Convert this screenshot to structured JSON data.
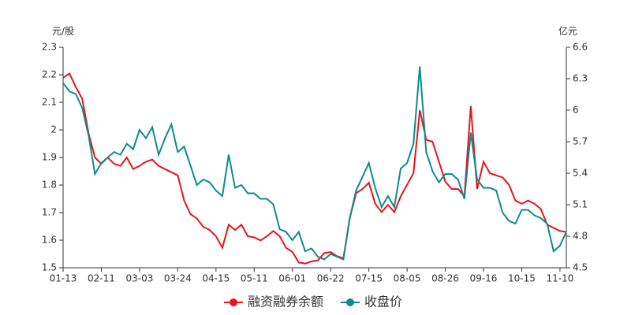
{
  "chart_data": {
    "type": "line",
    "y_label": "元/股",
    "y2_label": "亿元",
    "categories": [
      "01-13",
      null,
      null,
      null,
      null,
      null,
      "02-11",
      null,
      null,
      null,
      null,
      null,
      "03-03",
      null,
      null,
      null,
      null,
      null,
      "03-24",
      null,
      null,
      null,
      null,
      null,
      "04-15",
      null,
      null,
      null,
      null,
      null,
      "05-11",
      null,
      null,
      null,
      null,
      null,
      "06-01",
      null,
      null,
      null,
      null,
      null,
      "06-22",
      null,
      null,
      null,
      null,
      null,
      "07-15",
      null,
      null,
      null,
      null,
      null,
      "08-05",
      null,
      null,
      null,
      null,
      null,
      "08-26",
      null,
      null,
      null,
      null,
      null,
      "09-16",
      null,
      null,
      null,
      null,
      null,
      "10-15",
      null,
      null,
      null,
      null,
      null,
      "11-10",
      null
    ],
    "ylim": [
      1.5,
      2.3
    ],
    "yticks": [
      1.5,
      1.6,
      1.7,
      1.8,
      1.9,
      2,
      2.1,
      2.2,
      2.3
    ],
    "y2lim": [
      4.5,
      6.6
    ],
    "y2ticks": [
      4.5,
      4.8,
      5.1,
      5.4,
      5.7,
      6,
      6.3,
      6.6
    ],
    "series": [
      {
        "name": "融资融券余额",
        "color": "#e8141c",
        "axis": "y2",
        "values": [
          6.31,
          6.35,
          6.22,
          6.11,
          5.78,
          5.55,
          5.49,
          5.55,
          5.49,
          5.47,
          5.55,
          5.44,
          5.47,
          5.51,
          5.53,
          5.47,
          5.44,
          5.41,
          5.38,
          5.14,
          5.01,
          4.97,
          4.89,
          4.86,
          4.8,
          4.69,
          4.91,
          4.86,
          4.91,
          4.8,
          4.79,
          4.76,
          4.8,
          4.85,
          4.8,
          4.69,
          4.65,
          4.55,
          4.54,
          4.56,
          4.57,
          4.64,
          4.65,
          4.61,
          4.59,
          4.97,
          5.21,
          5.25,
          5.31,
          5.11,
          5.03,
          5.1,
          5.03,
          5.18,
          5.29,
          5.4,
          6.0,
          5.72,
          5.7,
          5.51,
          5.32,
          5.25,
          5.25,
          5.18,
          6.04,
          5.25,
          5.51,
          5.4,
          5.38,
          5.36,
          5.29,
          5.14,
          5.11,
          5.14,
          5.11,
          5.06,
          4.91,
          4.88,
          4.85,
          4.84
        ]
      },
      {
        "name": "收盘价",
        "color": "#0e8b8b",
        "values": [
          2.17,
          2.14,
          2.13,
          2.08,
          1.98,
          1.84,
          1.88,
          1.9,
          1.92,
          1.91,
          1.95,
          1.93,
          2.0,
          1.97,
          2.01,
          1.91,
          1.97,
          2.02,
          1.92,
          1.94,
          1.87,
          1.8,
          1.82,
          1.81,
          1.78,
          1.76,
          1.91,
          1.79,
          1.8,
          1.77,
          1.77,
          1.75,
          1.75,
          1.73,
          1.64,
          1.63,
          1.6,
          1.63,
          1.56,
          1.57,
          1.54,
          1.53,
          1.55,
          1.54,
          1.53,
          1.68,
          1.78,
          1.83,
          1.88,
          1.79,
          1.72,
          1.76,
          1.72,
          1.86,
          1.88,
          1.95,
          2.23,
          1.92,
          1.85,
          1.81,
          1.84,
          1.84,
          1.82,
          1.75,
          1.99,
          1.82,
          1.79,
          1.79,
          1.78,
          1.7,
          1.67,
          1.66,
          1.71,
          1.71,
          1.69,
          1.68,
          1.66,
          1.56,
          1.58,
          1.63
        ]
      }
    ]
  }
}
